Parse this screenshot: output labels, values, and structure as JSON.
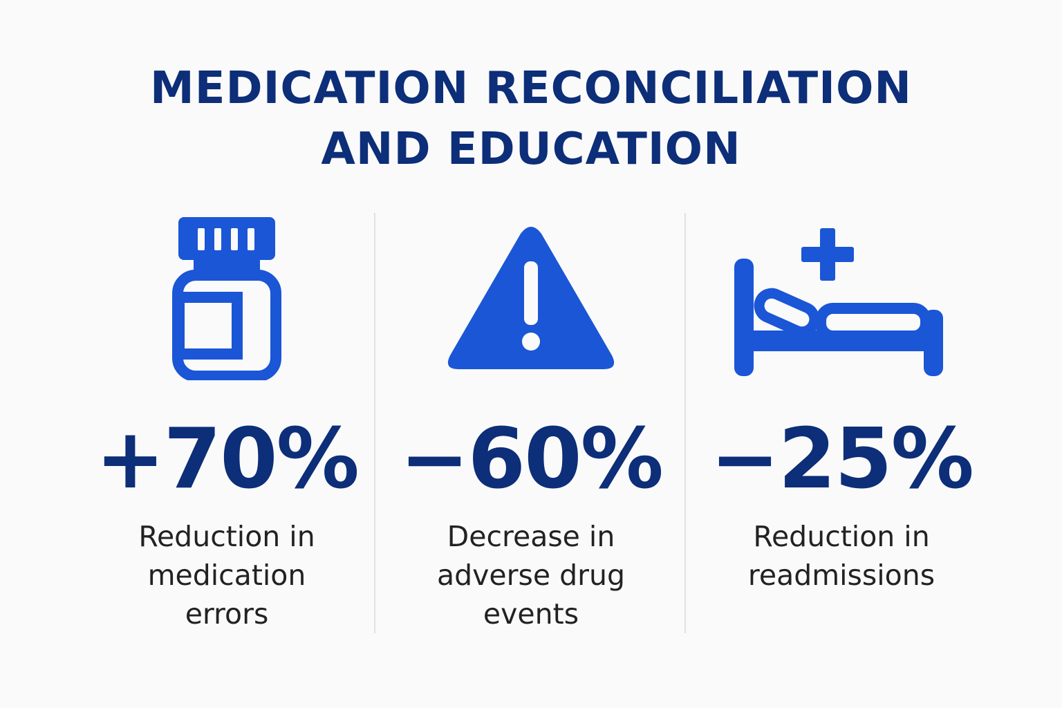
{
  "title": {
    "line1": "MEDICATION RECONCILIATION",
    "line2": "AND EDUCATION"
  },
  "colors": {
    "title": "#0d2e78",
    "accent": "#1a56d6",
    "text": "#222222",
    "divider": "#e1e1e1"
  },
  "stats": [
    {
      "icon": "pill-bottle-icon",
      "value": "+70%",
      "lines": [
        "Reduction in",
        "medication",
        "errors"
      ]
    },
    {
      "icon": "warning-triangle-icon",
      "value": "−60%",
      "lines": [
        "Decrease in",
        "adverse drug",
        "events"
      ]
    },
    {
      "icon": "hospital-bed-icon",
      "value": "−25%",
      "lines": [
        "Reduction in",
        "readmissions"
      ]
    }
  ]
}
